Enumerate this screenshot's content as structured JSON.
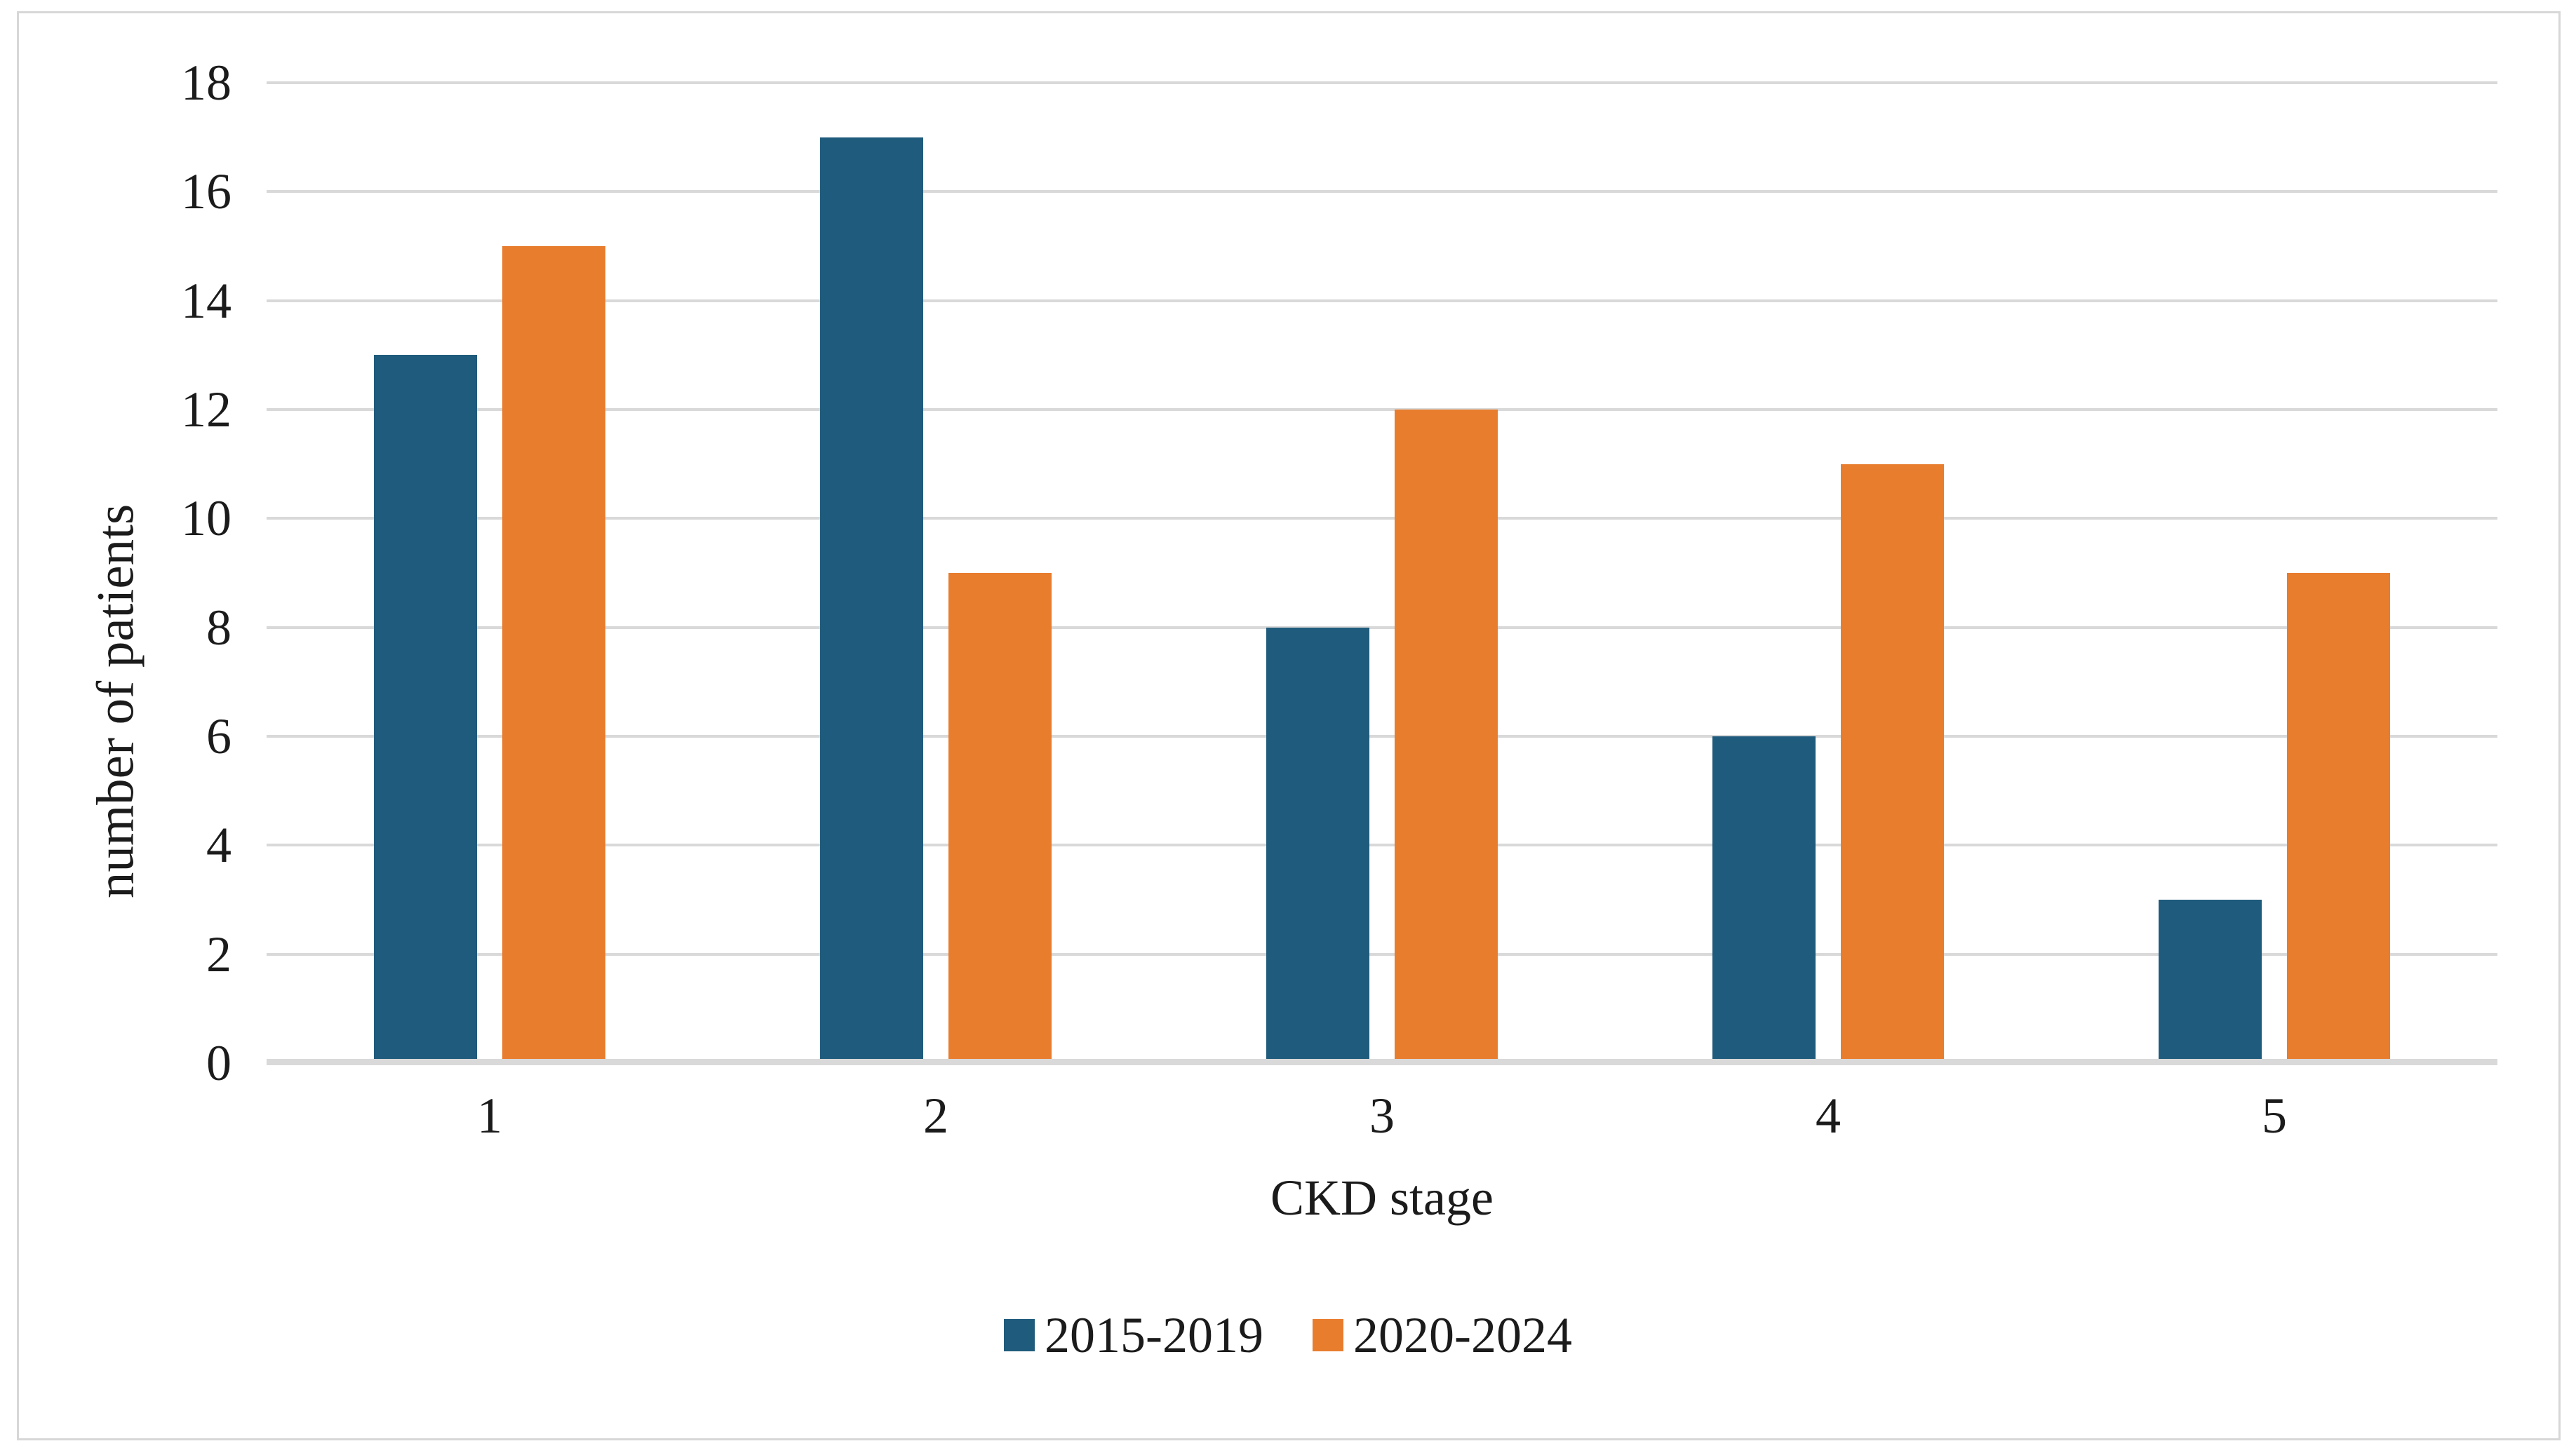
{
  "figure": {
    "background": "#FFFFFF",
    "border_color": "#D7D7D7"
  },
  "chart_data": {
    "type": "bar",
    "title": "",
    "categories": [
      "1",
      "2",
      "3",
      "4",
      "5"
    ],
    "series": [
      {
        "name": "2015-2019",
        "color": "#1F5B7C",
        "values": [
          13,
          17,
          8,
          6,
          3
        ]
      },
      {
        "name": "2020-2024",
        "color": "#E87D2E",
        "values": [
          15,
          9,
          12,
          11,
          9
        ]
      }
    ],
    "xlabel": "CKD stage",
    "ylabel": "number of patients",
    "ylim": [
      0,
      18
    ],
    "yticks": [
      0,
      2,
      4,
      6,
      8,
      10,
      12,
      14,
      16,
      18
    ],
    "grid": "horizontal-only",
    "gridline_color": "#D9D9D9",
    "baseline_color": "#D9D9D9",
    "tick_label_color": "#1B1B1B",
    "legend_position": "bottom-center"
  }
}
